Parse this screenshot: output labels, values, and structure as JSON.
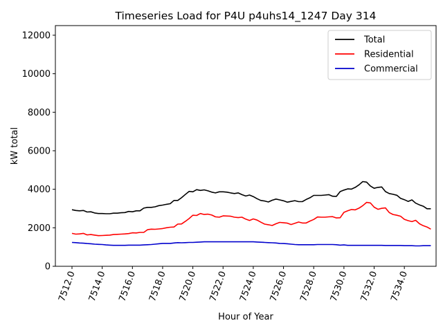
{
  "chart_data": {
    "type": "line",
    "title": "Timeseries Load for P4U p4uhs14_1247  Day 314",
    "xlabel": "Hour of Year",
    "ylabel": "kW total",
    "xlim": [
      7510.9,
      7536.1
    ],
    "ylim": [
      0,
      12500
    ],
    "xticks": [
      7512,
      7514,
      7516,
      7518,
      7520,
      7522,
      7524,
      7526,
      7528,
      7530,
      7532,
      7534
    ],
    "xtick_labels": [
      "7512.0",
      "7514.0",
      "7516.0",
      "7518.0",
      "7520.0",
      "7522.0",
      "7524.0",
      "7526.0",
      "7528.0",
      "7530.0",
      "7532.0",
      "7534.0"
    ],
    "yticks": [
      0,
      2000,
      4000,
      6000,
      8000,
      10000,
      12000
    ],
    "ytick_labels": [
      "0",
      "2000",
      "4000",
      "6000",
      "8000",
      "10000",
      "12000"
    ],
    "grid": false,
    "legend_position": "top-right",
    "x": [
      7512.0,
      7512.25,
      7512.5,
      7512.75,
      7513.0,
      7513.25,
      7513.5,
      7513.75,
      7514.0,
      7514.25,
      7514.5,
      7514.75,
      7515.0,
      7515.25,
      7515.5,
      7515.75,
      7516.0,
      7516.25,
      7516.5,
      7516.75,
      7517.0,
      7517.25,
      7517.5,
      7517.75,
      7518.0,
      7518.25,
      7518.5,
      7518.75,
      7519.0,
      7519.25,
      7519.5,
      7519.75,
      7520.0,
      7520.25,
      7520.5,
      7520.75,
      7521.0,
      7521.25,
      7521.5,
      7521.75,
      7522.0,
      7522.25,
      7522.5,
      7522.75,
      7523.0,
      7523.25,
      7523.5,
      7523.75,
      7524.0,
      7524.25,
      7524.5,
      7524.75,
      7525.0,
      7525.25,
      7525.5,
      7525.75,
      7526.0,
      7526.25,
      7526.5,
      7526.75,
      7527.0,
      7527.25,
      7527.5,
      7527.75,
      7528.0,
      7528.25,
      7528.5,
      7528.75,
      7529.0,
      7529.25,
      7529.5,
      7529.75,
      7530.0,
      7530.25,
      7530.5,
      7530.75,
      7531.0,
      7531.25,
      7531.5,
      7531.75,
      7532.0,
      7532.25,
      7532.5,
      7532.75,
      7533.0,
      7533.25,
      7533.5,
      7533.75,
      7534.0,
      7534.25,
      7534.5,
      7534.75,
      7535.0,
      7535.25,
      7535.5,
      7535.75
    ],
    "series": [
      {
        "name": "Total",
        "color": "#000000",
        "values": [
          2940,
          2900,
          2880,
          2900,
          2820,
          2830,
          2770,
          2740,
          2740,
          2730,
          2730,
          2760,
          2760,
          2780,
          2790,
          2850,
          2830,
          2880,
          2880,
          3020,
          3060,
          3060,
          3090,
          3150,
          3180,
          3220,
          3250,
          3420,
          3420,
          3560,
          3730,
          3890,
          3870,
          3980,
          3940,
          3970,
          3920,
          3850,
          3810,
          3870,
          3870,
          3850,
          3810,
          3780,
          3810,
          3720,
          3650,
          3700,
          3620,
          3510,
          3420,
          3390,
          3340,
          3430,
          3490,
          3450,
          3400,
          3330,
          3370,
          3410,
          3360,
          3360,
          3470,
          3560,
          3680,
          3680,
          3680,
          3700,
          3720,
          3640,
          3630,
          3880,
          3960,
          4020,
          4010,
          4100,
          4230,
          4400,
          4370,
          4170,
          4050,
          4100,
          4120,
          3880,
          3780,
          3740,
          3690,
          3530,
          3460,
          3370,
          3450,
          3280,
          3190,
          3120,
          2990,
          2990
        ],
        "value_note": "approximate, read from plot"
      },
      {
        "name": "Residential",
        "color": "#ff0000",
        "values": [
          1710,
          1670,
          1680,
          1710,
          1630,
          1650,
          1620,
          1590,
          1600,
          1610,
          1620,
          1650,
          1660,
          1670,
          1680,
          1700,
          1740,
          1730,
          1760,
          1760,
          1900,
          1930,
          1920,
          1940,
          1960,
          2000,
          2030,
          2040,
          2190,
          2200,
          2330,
          2480,
          2650,
          2640,
          2740,
          2690,
          2710,
          2660,
          2570,
          2550,
          2620,
          2610,
          2600,
          2550,
          2530,
          2550,
          2450,
          2380,
          2460,
          2400,
          2290,
          2190,
          2160,
          2120,
          2210,
          2280,
          2260,
          2240,
          2170,
          2230,
          2300,
          2250,
          2250,
          2350,
          2430,
          2560,
          2550,
          2550,
          2570,
          2580,
          2510,
          2520,
          2800,
          2880,
          2950,
          2930,
          3020,
          3150,
          3320,
          3290,
          3070,
          2960,
          3010,
          3030,
          2790,
          2690,
          2650,
          2600,
          2440,
          2370,
          2320,
          2390,
          2210,
          2110,
          2040,
          1930
        ],
        "value_note": "approximate, read from plot"
      },
      {
        "name": "Commercial",
        "color": "#0000cd",
        "values": [
          1240,
          1230,
          1210,
          1200,
          1180,
          1170,
          1150,
          1140,
          1130,
          1110,
          1100,
          1090,
          1090,
          1090,
          1090,
          1100,
          1100,
          1100,
          1100,
          1110,
          1120,
          1130,
          1150,
          1170,
          1190,
          1190,
          1190,
          1210,
          1230,
          1220,
          1230,
          1240,
          1240,
          1250,
          1260,
          1270,
          1270,
          1270,
          1270,
          1270,
          1270,
          1270,
          1270,
          1270,
          1270,
          1270,
          1270,
          1270,
          1270,
          1260,
          1250,
          1240,
          1230,
          1220,
          1210,
          1190,
          1180,
          1170,
          1150,
          1130,
          1120,
          1120,
          1120,
          1120,
          1120,
          1130,
          1130,
          1130,
          1130,
          1130,
          1120,
          1100,
          1110,
          1090,
          1090,
          1090,
          1090,
          1090,
          1090,
          1090,
          1090,
          1090,
          1090,
          1080,
          1080,
          1080,
          1080,
          1080,
          1070,
          1070,
          1070,
          1060,
          1060,
          1070,
          1070,
          1070
        ],
        "value_note": "approximate, read from plot"
      }
    ]
  }
}
